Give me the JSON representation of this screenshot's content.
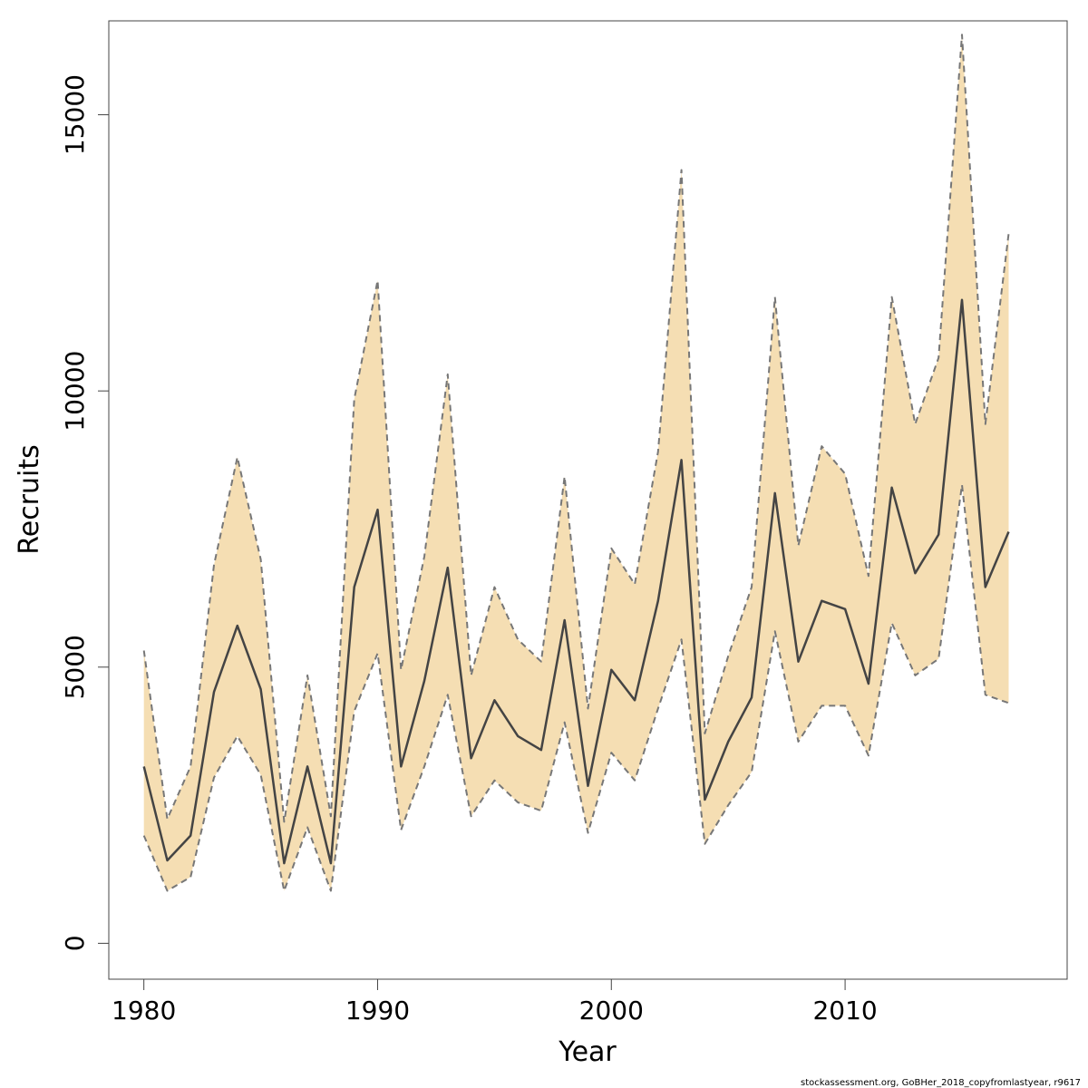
{
  "chart_data": {
    "type": "line",
    "title": "",
    "xlabel": "Year",
    "ylabel": "Recruits",
    "xlim": [
      1978.5,
      2019.5
    ],
    "ylim": [
      -650,
      16700
    ],
    "x_ticks": [
      1980,
      1990,
      2000,
      2010
    ],
    "y_ticks": [
      0,
      5000,
      10000,
      15000
    ],
    "x_tick_labels": [
      "1980",
      "1990",
      "2000",
      "2010"
    ],
    "y_tick_labels": [
      "0",
      "5000",
      "10000",
      "15000"
    ],
    "grid": false,
    "legend": "none",
    "x": [
      1980,
      1981,
      1982,
      1983,
      1984,
      1985,
      1986,
      1987,
      1988,
      1989,
      1990,
      1991,
      1992,
      1993,
      1994,
      1995,
      1996,
      1997,
      1998,
      1999,
      2000,
      2001,
      2002,
      2003,
      2004,
      2005,
      2006,
      2007,
      2008,
      2009,
      2010,
      2011,
      2012,
      2013,
      2014,
      2015,
      2016,
      2017
    ],
    "series": [
      {
        "role": "estimate",
        "values": [
          3200,
          1500,
          1950,
          4550,
          5750,
          4600,
          1450,
          3200,
          1450,
          6450,
          7850,
          3200,
          4750,
          6800,
          3350,
          4400,
          3750,
          3500,
          5850,
          2850,
          4950,
          4400,
          6200,
          8750,
          2600,
          3650,
          4450,
          8150,
          5100,
          6200,
          6050,
          4700,
          8250,
          6700,
          7400,
          11650,
          6450,
          7450
        ],
        "color": "#444444"
      },
      {
        "role": "upper",
        "values": [
          5300,
          2250,
          3200,
          6850,
          8800,
          6950,
          2200,
          4850,
          2300,
          9850,
          12000,
          4950,
          7000,
          10300,
          4850,
          6450,
          5500,
          5100,
          8450,
          4250,
          7150,
          6500,
          8900,
          14000,
          3800,
          5200,
          6450,
          11700,
          7200,
          9000,
          8500,
          6650,
          11700,
          9400,
          10600,
          16450,
          9400,
          12850
        ],
        "color": "#777777"
      },
      {
        "role": "lower",
        "values": [
          1950,
          950,
          1200,
          3000,
          3750,
          3050,
          950,
          2100,
          950,
          4200,
          5250,
          2050,
          3200,
          4500,
          2300,
          2950,
          2550,
          2400,
          4000,
          2000,
          3450,
          2950,
          4250,
          5500,
          1800,
          2500,
          3100,
          5650,
          3650,
          4300,
          4300,
          3400,
          5800,
          4850,
          5150,
          8300,
          4500,
          4350
        ],
        "color": "#777777"
      }
    ],
    "band_color": "#f5deb3"
  },
  "footer": {
    "note": "stockassessment.org, GoBHer_2018_copyfromlastyear, r9617"
  }
}
